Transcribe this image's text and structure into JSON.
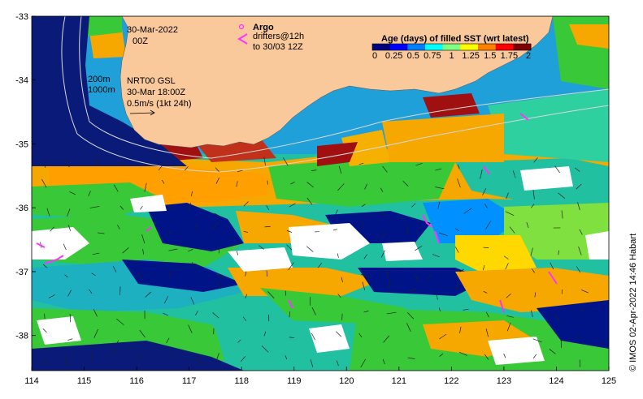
{
  "map": {
    "lon_range": [
      114,
      125
    ],
    "lat_range": [
      -38.55,
      -33
    ],
    "x_ticks": [
      "114",
      "115",
      "116",
      "117",
      "118",
      "119",
      "120",
      "121",
      "122",
      "123",
      "124",
      "125"
    ],
    "y_ticks": [
      "-33",
      "-34",
      "-35",
      "-36",
      "-37",
      "-38"
    ],
    "colors": {
      "land": "#f9c89b",
      "ocean_deep": "#0a1a78",
      "missing": "#ffffff",
      "argo": "#ff33ff",
      "contour": "#d8d8d8"
    }
  },
  "annotations": {
    "date": "30-Mar-2022",
    "time": "00Z",
    "depth_200": "200m",
    "depth_1000": "1000m",
    "current_product": "NRT00 GSL",
    "current_time": "30-Mar 18:00Z",
    "current_scale": "0.5m/s (1kt 24h)",
    "argo_label": "Argo",
    "drifter_line1": "drifters@12h",
    "drifter_line2": "to 30/03 12Z",
    "credit": "© IMOS 02-Apr-2022 14:46 Habart"
  },
  "colorbar": {
    "title": "Age (days) of filled SST (wrt latest)",
    "tick_labels": [
      "0",
      "0.25",
      "0.5",
      "0.75",
      "1",
      "1.25",
      "1.5",
      "1.75",
      "2"
    ],
    "range": [
      0,
      2
    ],
    "colors": [
      "#00007f",
      "#0000ff",
      "#0080ff",
      "#00ffff",
      "#80ff80",
      "#ffff00",
      "#ff8000",
      "#ff0000",
      "#7f0000"
    ]
  }
}
